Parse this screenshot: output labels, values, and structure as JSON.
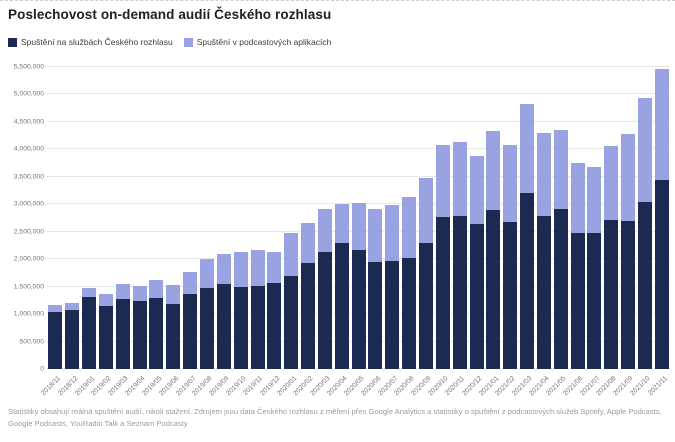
{
  "title": "Poslechovost on-demand audií Českého rozhlasu",
  "legend": {
    "items": [
      {
        "label": "Spuštění na službách Českého rozhlasu",
        "color": "#1c2a52"
      },
      {
        "label": "Spuštění v podcastových aplikacích",
        "color": "#99a3e1"
      }
    ]
  },
  "footnote": "Statistiky obsahují reálná spuštění audií, nikoli stažení. Zdrojem jsou data Českého rozhlasu z měření přes Google Analytics a statistiky o spuštění z podcastových služeb Spotify, Apple Podcasts, Google Podcasts, YouRadio Talk a Seznam Podcasty",
  "chart_data": {
    "type": "bar",
    "stacked": true,
    "title": "Poslechovost on-demand audií Českého rozhlasu",
    "xlabel": "",
    "ylabel": "",
    "ylim": [
      0,
      5500000
    ],
    "ytick_step": 500000,
    "grid": "horizontal",
    "legend_position": "top-left",
    "categories": [
      "2018/11",
      "2018/12",
      "2019/01",
      "2019/02",
      "2019/03",
      "2019/04",
      "2019/05",
      "2019/06",
      "2019/07",
      "2019/08",
      "2019/09",
      "2019/10",
      "2019/11",
      "2019/12",
      "2020/01",
      "2020/02",
      "2020/03",
      "2020/04",
      "2020/05",
      "2020/06",
      "2020/07",
      "2020/08",
      "2020/09",
      "2020/10",
      "2020/11",
      "2020/12",
      "2021/01",
      "2021/02",
      "2021/03",
      "2021/04",
      "2021/05",
      "2021/06",
      "2021/07",
      "2021/08",
      "2021/09",
      "2021/10",
      "2021/11"
    ],
    "series": [
      {
        "name": "Spuštění na službách Českého rozhlasu",
        "color": "#1c2a52",
        "values": [
          1040000,
          1070000,
          1310000,
          1150000,
          1280000,
          1240000,
          1300000,
          1190000,
          1370000,
          1480000,
          1540000,
          1490000,
          1510000,
          1560000,
          1700000,
          1930000,
          2130000,
          2300000,
          2170000,
          1950000,
          1960000,
          2020000,
          2290000,
          2770000,
          2790000,
          2640000,
          2890000,
          2670000,
          3210000,
          2780000,
          2920000,
          2470000,
          2470000,
          2720000,
          2690000,
          3050000,
          3450000
        ]
      },
      {
        "name": "Spuštění v podcastových aplikacích",
        "color": "#99a3e1",
        "values": [
          120000,
          140000,
          160000,
          210000,
          270000,
          280000,
          330000,
          340000,
          390000,
          530000,
          560000,
          650000,
          650000,
          580000,
          770000,
          730000,
          780000,
          710000,
          860000,
          960000,
          1030000,
          1110000,
          1180000,
          1310000,
          1340000,
          1240000,
          1440000,
          1410000,
          1620000,
          1510000,
          1440000,
          1280000,
          1200000,
          1350000,
          1590000,
          1890000,
          2010000
        ]
      }
    ]
  }
}
